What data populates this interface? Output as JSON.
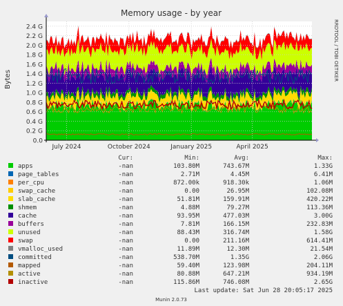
{
  "chart_data": {
    "type": "area",
    "title": "Memory usage - by year",
    "ylabel": "Bytes",
    "xlabel": "",
    "side_label": "RRDTOOL / TOBI OETIKER",
    "ylim": [
      0,
      2.5
    ],
    "y_ticks": [
      "0.0",
      "0.2 G",
      "0.4 G",
      "0.6 G",
      "0.8 G",
      "1.0 G",
      "1.2 G",
      "1.4 G",
      "1.6 G",
      "1.8 G",
      "2.0 G",
      "2.2 G",
      "2.4 G"
    ],
    "y_tick_values": [
      0.0,
      0.2,
      0.4,
      0.6,
      0.8,
      1.0,
      1.2,
      1.4,
      1.6,
      1.8,
      2.0,
      2.2,
      2.4
    ],
    "x_ticks": [
      "July 2024",
      "October 2024",
      "January 2025",
      "April 2025"
    ],
    "x_range": [
      "2024-06-01",
      "2025-06-28"
    ],
    "x_tick_dates": [
      "2024-07-01",
      "2024-10-01",
      "2025-01-01",
      "2025-04-01"
    ],
    "grid": true,
    "legend_header": {
      "cur": "Cur:",
      "min": "Min:",
      "avg": "Avg:",
      "max": "Max:"
    },
    "series": [
      {
        "name": "apps",
        "color": "#00cc00",
        "cur": "-nan",
        "min": "103.80M",
        "avg": "743.67M",
        "max": "1.33G",
        "typical": 0.74
      },
      {
        "name": "page_tables",
        "color": "#0066b3",
        "cur": "-nan",
        "min": "2.71M",
        "avg": "4.45M",
        "max": "6.41M",
        "typical": 0.004
      },
      {
        "name": "per_cpu",
        "color": "#ff8000",
        "cur": "-nan",
        "min": "872.00k",
        "avg": "918.30k",
        "max": "1.06M",
        "typical": 0.001
      },
      {
        "name": "swap_cache",
        "color": "#ffcc00",
        "cur": "-nan",
        "min": "0.00",
        "avg": "26.95M",
        "max": "102.08M",
        "typical": 0.027
      },
      {
        "name": "slab_cache",
        "color": "#ffdd00",
        "cur": "-nan",
        "min": "51.81M",
        "avg": "159.91M",
        "max": "420.22M",
        "typical": 0.16
      },
      {
        "name": "shmem",
        "color": "#008f00",
        "cur": "-nan",
        "min": "4.88M",
        "avg": "79.27M",
        "max": "113.36M",
        "typical": 0.079
      },
      {
        "name": "cache",
        "color": "#330099",
        "cur": "-nan",
        "min": "93.95M",
        "avg": "477.03M",
        "max": "3.00G",
        "typical": 0.38
      },
      {
        "name": "buffers",
        "color": "#990099",
        "cur": "-nan",
        "min": "7.81M",
        "avg": "166.15M",
        "max": "232.83M",
        "typical": 0.15
      },
      {
        "name": "unused",
        "color": "#ccff00",
        "cur": "-nan",
        "min": "88.43M",
        "avg": "316.74M",
        "max": "1.58G",
        "typical": 0.38
      },
      {
        "name": "swap",
        "color": "#ff0000",
        "cur": "-nan",
        "min": "0.00",
        "avg": "211.16M",
        "max": "614.41M",
        "typical": 0.22
      },
      {
        "name": "vmalloc_used",
        "color": "#808080",
        "cur": "-nan",
        "min": "11.89M",
        "avg": "12.30M",
        "max": "21.54M",
        "typical": 0.012
      },
      {
        "name": "committed",
        "color": "#004d80",
        "cur": "-nan",
        "min": "538.70M",
        "avg": "1.35G",
        "max": "2.06G",
        "line": true
      },
      {
        "name": "mapped",
        "color": "#b35a00",
        "cur": "-nan",
        "min": "59.40M",
        "avg": "123.98M",
        "max": "204.11M",
        "line": true
      },
      {
        "name": "active",
        "color": "#b38f00",
        "cur": "-nan",
        "min": "80.88M",
        "avg": "647.21M",
        "max": "934.19M",
        "line": true
      },
      {
        "name": "inactive",
        "color": "#b30000",
        "cur": "-nan",
        "min": "115.86M",
        "avg": "746.08M",
        "max": "2.65G",
        "line": true
      }
    ],
    "last_update": "Last update: Sat Jun 28 20:05:17 2025",
    "footer": "Munin 2.0.73"
  }
}
